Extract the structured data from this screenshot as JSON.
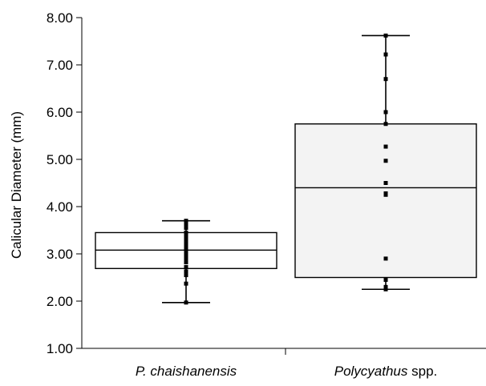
{
  "chart_data": {
    "type": "box",
    "ylabel": "Calicular Diameter (mm)",
    "ylim": [
      1.0,
      8.0
    ],
    "yticks": [
      "1.00",
      "2.00",
      "3.00",
      "4.00",
      "5.00",
      "6.00",
      "7.00",
      "8.00"
    ],
    "grid": false,
    "groups": [
      {
        "label_italic": "P. chaishanensis",
        "label_rest": "",
        "whisker_low": 1.97,
        "q1": 2.69,
        "median": 3.08,
        "q3": 3.45,
        "whisker_high": 3.7,
        "box_fill": "#ffffff",
        "points": [
          1.97,
          2.37,
          2.55,
          2.63,
          2.72,
          2.82,
          2.9,
          2.98,
          3.05,
          3.1,
          3.16,
          3.22,
          3.3,
          3.38,
          3.45,
          3.55,
          3.63,
          3.7
        ]
      },
      {
        "label_italic": "Polycyathus",
        "label_rest": " spp.",
        "whisker_low": 2.25,
        "q1": 2.5,
        "median": 4.4,
        "q3": 5.75,
        "whisker_high": 7.62,
        "box_fill": "#f3f3f3",
        "points": [
          2.25,
          2.3,
          2.45,
          2.9,
          4.25,
          4.28,
          4.5,
          4.97,
          5.27,
          5.75,
          6.0,
          6.7,
          7.22,
          7.62
        ]
      }
    ]
  }
}
